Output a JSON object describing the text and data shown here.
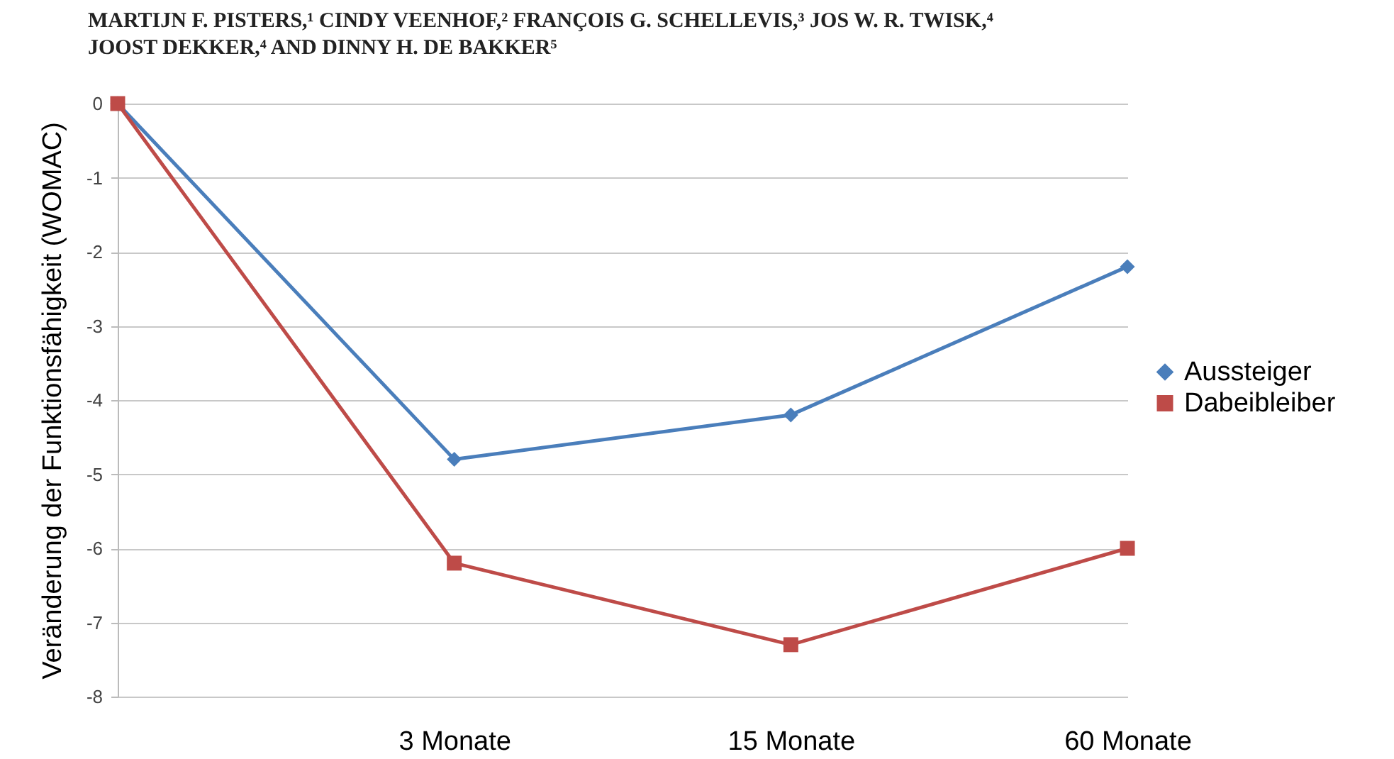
{
  "chart_data": {
    "type": "line",
    "annotations": [
      "MARTIJN F. PISTERS,¹ CINDY VEENHOF,² FRANÇOIS G. SCHELLEVIS,³ JOS W. R. TWISK,⁴",
      "JOOST DEKKER,⁴ AND DINNY H. DE BAKKER⁵"
    ],
    "ylabel": "Veränderung der Funktionsfähigkeit  (WOMAC)",
    "categories": [
      null,
      "3 Monate",
      "15 Monate",
      "60 Monate"
    ],
    "series": [
      {
        "name": "Aussteiger",
        "color": "#4a7ebb",
        "marker": "diamond",
        "values": [
          0,
          -4.8,
          -4.2,
          -2.2
        ]
      },
      {
        "name": "Dabeibleiber",
        "color": "#be4b48",
        "marker": "square",
        "values": [
          0,
          -6.2,
          -7.3,
          -6.0
        ]
      }
    ],
    "ylim": [
      -8,
      0
    ],
    "yticks": [
      -8,
      -7,
      -6,
      -5,
      -4,
      -3,
      -2,
      -1,
      0
    ],
    "grid": "y",
    "legend": "right"
  }
}
